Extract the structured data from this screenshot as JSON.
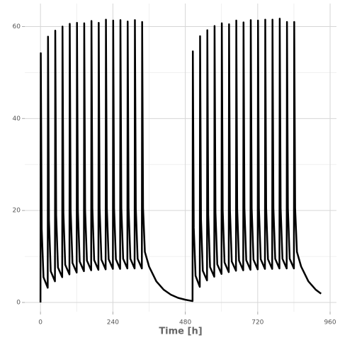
{
  "chart_data": {
    "type": "line",
    "xlabel": "Time [h]",
    "x": [
      0,
      1,
      4,
      10,
      24,
      25,
      28,
      34,
      48,
      49,
      52,
      58,
      72,
      73,
      76,
      82,
      96,
      97,
      100,
      106,
      120,
      121,
      124,
      130,
      144,
      145,
      148,
      154,
      168,
      169,
      172,
      178,
      192,
      193,
      196,
      202,
      216,
      217,
      220,
      226,
      240,
      241,
      244,
      250,
      264,
      265,
      268,
      274,
      288,
      289,
      292,
      298,
      312,
      313,
      316,
      322,
      336,
      337,
      340,
      346,
      360,
      384,
      408,
      432,
      456,
      480,
      504,
      505,
      508,
      514,
      528,
      529,
      532,
      538,
      552,
      553,
      556,
      562,
      576,
      577,
      580,
      586,
      600,
      601,
      604,
      610,
      624,
      625,
      628,
      634,
      648,
      649,
      652,
      658,
      672,
      673,
      676,
      682,
      696,
      697,
      700,
      706,
      720,
      721,
      724,
      730,
      744,
      745,
      748,
      754,
      768,
      769,
      772,
      778,
      792,
      793,
      796,
      802,
      816,
      817,
      820,
      826,
      840,
      841,
      844,
      850,
      864,
      888,
      912,
      930
    ],
    "values": [
      0,
      54.2,
      16,
      5.5,
      3.2,
      57.8,
      18,
      6.8,
      4.6,
      59.1,
      19,
      7.6,
      5.5,
      60.0,
      19.5,
      8.2,
      6.1,
      60.6,
      20,
      8.6,
      6.5,
      60.8,
      20,
      8.9,
      6.8,
      60.7,
      20,
      9.1,
      7.0,
      61.2,
      20.5,
      9.2,
      7.1,
      60.8,
      20.5,
      9.3,
      7.2,
      61.5,
      20.5,
      9.4,
      7.3,
      61.3,
      20.5,
      9.4,
      7.3,
      61.4,
      20.5,
      9.5,
      7.4,
      61.1,
      20.5,
      9.5,
      7.4,
      61.4,
      20.5,
      9.5,
      7.4,
      61.0,
      20.5,
      11,
      7.8,
      4.6,
      2.8,
      1.7,
      1.0,
      0.6,
      0.3,
      54.6,
      16.3,
      5.8,
      3.4,
      57.9,
      18.1,
      6.9,
      4.8,
      59.2,
      19.1,
      7.7,
      5.6,
      60.1,
      19.6,
      8.3,
      6.2,
      60.7,
      20,
      8.7,
      6.6,
      60.5,
      20,
      8.9,
      6.9,
      61.3,
      20.3,
      9.1,
      7.0,
      60.9,
      20.5,
      9.2,
      7.1,
      61.4,
      20.5,
      9.3,
      7.2,
      61.3,
      20.5,
      9.4,
      7.3,
      61.5,
      20.5,
      9.4,
      7.3,
      61.5,
      20.5,
      9.5,
      7.4,
      61.7,
      20.5,
      9.5,
      7.4,
      61.0,
      20.5,
      9.5,
      7.4,
      61.0,
      20.5,
      11,
      7.8,
      4.6,
      2.8,
      1.9
    ],
    "color": "#000000",
    "xlim": [
      -52,
      981
    ],
    "ylim": [
      -2,
      65
    ],
    "xticks": [
      0,
      240,
      480,
      720,
      960
    ],
    "yticks": [
      0,
      20,
      40,
      60
    ],
    "x_minor_grid": [
      120,
      360,
      600,
      840
    ],
    "y_minor_grid": [
      10,
      30,
      50
    ],
    "grid": true
  }
}
